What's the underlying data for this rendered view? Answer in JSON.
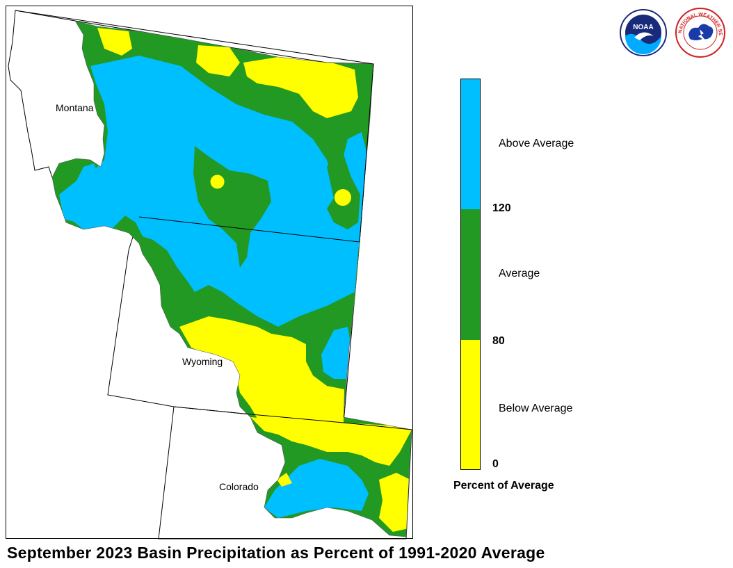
{
  "title": "September 2023 Basin Precipitation as Percent of 1991-2020 Average",
  "legend": {
    "title": "Percent of Average",
    "categories": [
      {
        "label": "Above Average",
        "color": "#00BFFF",
        "range": [
          120,
          null
        ]
      },
      {
        "label": "Average",
        "color": "#229922",
        "range": [
          80,
          120
        ]
      },
      {
        "label": "Below Average",
        "color": "#FFFF00",
        "range": [
          0,
          80
        ]
      }
    ],
    "ticks": [
      "120",
      "80",
      "0"
    ]
  },
  "states": {
    "montana": "Montana",
    "wyoming": "Wyoming",
    "colorado": "Colorado"
  },
  "logos": {
    "noaa": {
      "text": "NOAA",
      "icon": "noaa-logo-icon"
    },
    "nws": {
      "text": "NATIONAL WEATHER SERVICE",
      "icon": "nws-logo-icon"
    }
  },
  "colors": {
    "above": "#00BFFF",
    "average": "#229922",
    "below": "#FFFF00"
  }
}
